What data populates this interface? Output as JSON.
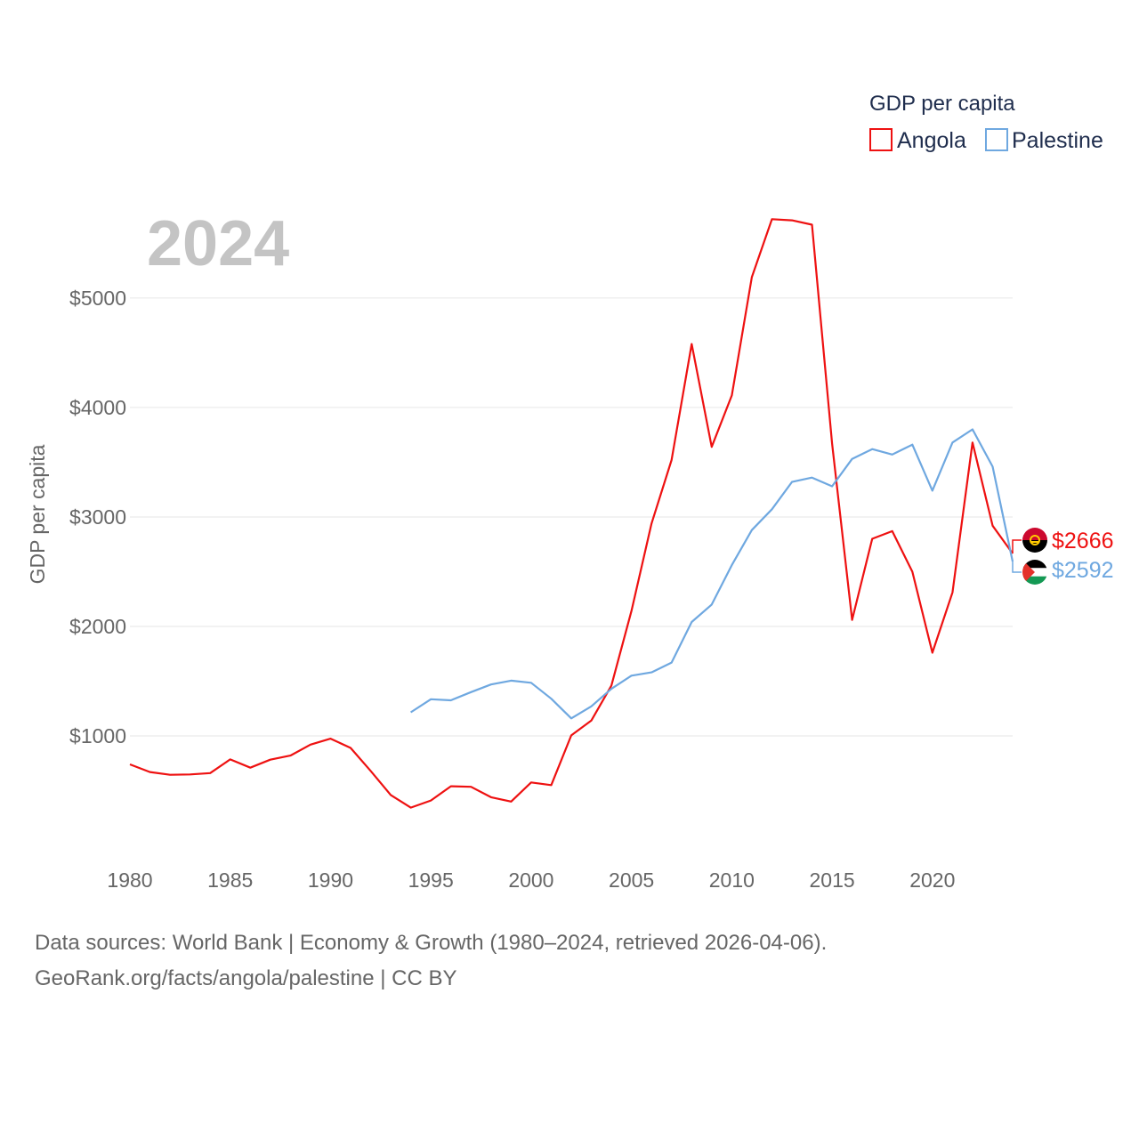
{
  "chart_data": {
    "type": "line",
    "title": "GDP per capita",
    "year_label": "2024",
    "ylabel": "GDP per capita",
    "xlabel": "",
    "xlim": [
      1980,
      2024
    ],
    "ylim": [
      0,
      5800
    ],
    "y_ticks": [
      1000,
      2000,
      3000,
      4000,
      5000
    ],
    "y_tick_labels": [
      "$1000",
      "$2000",
      "$3000",
      "$4000",
      "$5000"
    ],
    "x_ticks": [
      1980,
      1985,
      1990,
      1995,
      2000,
      2005,
      2010,
      2015,
      2020
    ],
    "x_tick_labels": [
      "1980",
      "1985",
      "1990",
      "1995",
      "2000",
      "2005",
      "2010",
      "2015",
      "2020"
    ],
    "grid": true,
    "legend_position": "top-right",
    "series": [
      {
        "name": "Angola",
        "color": "#ee1111",
        "end_label": "$2666",
        "x": [
          1980,
          1981,
          1982,
          1983,
          1984,
          1985,
          1986,
          1987,
          1988,
          1989,
          1990,
          1991,
          1992,
          1993,
          1994,
          1995,
          1996,
          1997,
          1998,
          1999,
          2000,
          2001,
          2002,
          2003,
          2004,
          2005,
          2006,
          2007,
          2008,
          2009,
          2010,
          2011,
          2012,
          2013,
          2014,
          2015,
          2016,
          2017,
          2018,
          2019,
          2020,
          2021,
          2022,
          2023,
          2024
        ],
        "values": [
          740,
          670,
          645,
          648,
          660,
          785,
          710,
          783,
          820,
          920,
          975,
          890,
          680,
          460,
          345,
          410,
          540,
          535,
          440,
          400,
          575,
          550,
          1005,
          1140,
          1460,
          2140,
          2940,
          3520,
          4580,
          3640,
          4110,
          5190,
          5720,
          5710,
          5670,
          3670,
          2060,
          2800,
          2870,
          2500,
          1760,
          2310,
          3680,
          2920,
          2666
        ]
      },
      {
        "name": "Palestine",
        "color": "#6fa8e0",
        "end_label": "$2592",
        "x": [
          1994,
          1995,
          1996,
          1997,
          1998,
          1999,
          2000,
          2001,
          2002,
          2003,
          2004,
          2005,
          2006,
          2007,
          2008,
          2009,
          2010,
          2011,
          2012,
          2013,
          2014,
          2015,
          2016,
          2017,
          2018,
          2019,
          2020,
          2021,
          2022,
          2023,
          2024
        ],
        "values": [
          1215,
          1335,
          1325,
          1400,
          1470,
          1505,
          1485,
          1340,
          1160,
          1270,
          1430,
          1550,
          1580,
          1670,
          2040,
          2200,
          2560,
          2880,
          3070,
          3320,
          3360,
          3280,
          3530,
          3620,
          3570,
          3660,
          3240,
          3680,
          3800,
          3460,
          2592
        ]
      }
    ]
  },
  "source": {
    "line1": "Data sources: World Bank | Economy & Growth (1980–2024, retrieved 2026-04-06).",
    "line2": "GeoRank.org/facts/angola/palestine | CC BY"
  }
}
